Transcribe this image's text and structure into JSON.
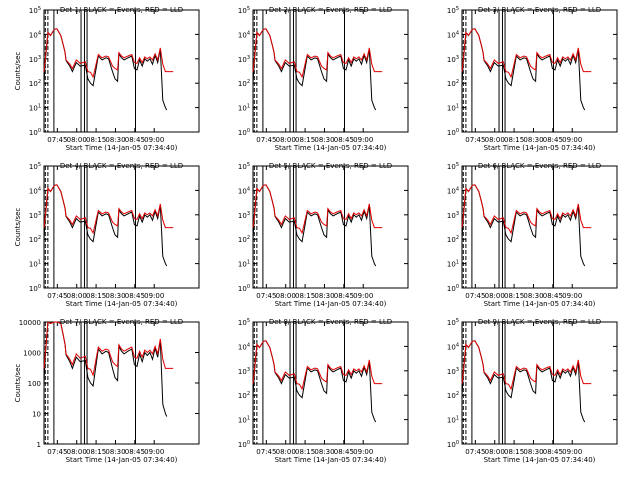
{
  "chart_data": [
    {
      "type": "line",
      "title": "Det 1/ BLACK = Events, RED = LLD",
      "xlabel": "Start Time (14-Jan-05 07:34:40)",
      "ylabel": "Counts/sec",
      "xticks": [
        "07:45",
        "08:00",
        "08:15",
        "08:30",
        "08:45",
        "09:00"
      ],
      "yticks": [
        "10^0",
        "10^1",
        "10^2",
        "10^3",
        "10^4",
        "10^5"
      ],
      "ylim": [
        1,
        100000
      ],
      "yscale": "log"
    },
    {
      "type": "line",
      "title": "Det 2/ BLACK = Events, RED = LLD",
      "xlabel": "Start Time (14-Jan-05 07:34:40)",
      "ylabel": "",
      "xticks": [
        "07:45",
        "08:00",
        "08:15",
        "08:30",
        "08:45",
        "09:00"
      ],
      "yticks": [
        "10^0",
        "10^1",
        "10^2",
        "10^3",
        "10^4",
        "10^5"
      ],
      "ylim": [
        1,
        100000
      ],
      "yscale": "log"
    },
    {
      "type": "line",
      "title": "Det 3/ BLACK = Events, RED = LLD",
      "xlabel": "Start Time (14-Jan-05 07:34:40)",
      "ylabel": "",
      "xticks": [
        "07:45",
        "08:00",
        "08:15",
        "08:30",
        "08:45",
        "09:00"
      ],
      "yticks": [
        "10^0",
        "10^1",
        "10^2",
        "10^3",
        "10^4",
        "10^5"
      ],
      "ylim": [
        1,
        100000
      ],
      "yscale": "log"
    },
    {
      "type": "line",
      "title": "Det 4/ BLACK = Events, RED = LLD",
      "xlabel": "Start Time (14-Jan-05 07:34:40)",
      "ylabel": "Counts/sec",
      "xticks": [
        "07:45",
        "08:00",
        "08:15",
        "08:30",
        "08:45",
        "09:00"
      ],
      "yticks": [
        "10^0",
        "10^1",
        "10^2",
        "10^3",
        "10^4",
        "10^5"
      ],
      "ylim": [
        1,
        100000
      ],
      "yscale": "log"
    },
    {
      "type": "line",
      "title": "Det 5/ BLACK = Events, RED = LLD",
      "xlabel": "Start Time (14-Jan-05 07:34:40)",
      "ylabel": "",
      "xticks": [
        "07:45",
        "08:00",
        "08:15",
        "08:30",
        "08:45",
        "09:00"
      ],
      "yticks": [
        "10^0",
        "10^1",
        "10^2",
        "10^3",
        "10^4",
        "10^5"
      ],
      "ylim": [
        1,
        100000
      ],
      "yscale": "log"
    },
    {
      "type": "line",
      "title": "Det 6/ BLACK = Events, RED = LLD",
      "xlabel": "Start Time (14-Jan-05 07:34:40)",
      "ylabel": "",
      "xticks": [
        "07:45",
        "08:00",
        "08:15",
        "08:30",
        "08:45",
        "09:00"
      ],
      "yticks": [
        "10^0",
        "10^1",
        "10^2",
        "10^3",
        "10^4",
        "10^5"
      ],
      "ylim": [
        1,
        100000
      ],
      "yscale": "log"
    },
    {
      "type": "line",
      "title": "Det 7/ BLACK = Events, RED = LLD",
      "xlabel": "Start Time (14-Jan-05 07:34:40)",
      "ylabel": "Counts/sec",
      "xticks": [
        "07:45",
        "08:00",
        "08:15",
        "08:30",
        "08:45",
        "09:00"
      ],
      "yticks": [
        "1",
        "10",
        "100",
        "1000",
        "10000"
      ],
      "ylim": [
        1,
        10000
      ],
      "yscale": "log"
    },
    {
      "type": "line",
      "title": "Det 8/ BLACK = Events, RED = LLD",
      "xlabel": "Start Time (14-Jan-05 07:34:40)",
      "ylabel": "",
      "xticks": [
        "07:45",
        "08:00",
        "08:15",
        "08:30",
        "08:45",
        "09:00"
      ],
      "yticks": [
        "10^0",
        "10^1",
        "10^2",
        "10^3",
        "10^4",
        "10^5"
      ],
      "ylim": [
        1,
        100000
      ],
      "yscale": "log"
    },
    {
      "type": "line",
      "title": "Det 9/ BLACK = Events, RED = LLD",
      "xlabel": "Start Time (14-Jan-05 07:34:40)",
      "ylabel": "",
      "xticks": [
        "07:45",
        "08:00",
        "08:15",
        "08:30",
        "08:45",
        "09:00"
      ],
      "yticks": [
        "10^0",
        "10^1",
        "10^2",
        "10^3",
        "10^4",
        "10^5"
      ],
      "ylim": [
        1,
        100000
      ],
      "yscale": "log"
    }
  ],
  "colors": {
    "events": "#000000",
    "lld": "#e00000",
    "marker": "#000000"
  },
  "profile": {
    "minutes": [
      -5.3,
      0,
      1,
      3,
      5,
      8,
      10,
      13,
      15,
      16.3,
      17,
      20,
      22,
      25,
      28,
      32,
      34,
      36,
      38,
      42,
      45,
      48,
      50,
      53,
      55,
      57,
      58,
      60,
      62,
      65,
      68,
      70,
      72,
      74,
      76,
      78,
      80,
      82,
      84,
      86,
      88,
      90,
      92,
      94,
      95,
      100
    ],
    "lld": [
      300,
      300,
      900,
      12000,
      9000,
      16000,
      17000,
      9000,
      3500,
      1800,
      900,
      600,
      400,
      900,
      650,
      750,
      300,
      280,
      180,
      1500,
      1100,
      1300,
      1200,
      500,
      400,
      350,
      1800,
      1300,
      1100,
      1300,
      1500,
      700,
      650,
      1100,
      700,
      1200,
      1000,
      1200,
      900,
      1600,
      900,
      2800,
      600,
      300,
      300,
      300
    ],
    "events": [
      null,
      100,
      800,
      12000,
      9000,
      16000,
      17000,
      9000,
      3500,
      1800,
      850,
      500,
      300,
      700,
      500,
      550,
      150,
      100,
      80,
      1300,
      900,
      1100,
      1000,
      300,
      150,
      120,
      1600,
      1100,
      900,
      1100,
      1300,
      400,
      350,
      900,
      500,
      1000,
      800,
      1000,
      600,
      1400,
      700,
      2500,
      20,
      10,
      8,
      null
    ]
  }
}
